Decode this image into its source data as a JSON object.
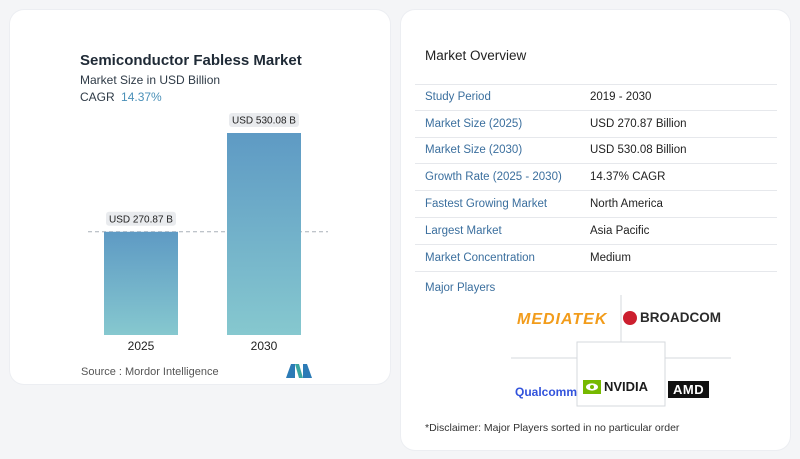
{
  "chart_card": {
    "title": "Semiconductor Fabless Market",
    "subtitle": "Market Size in USD Billion",
    "cagr_label": "CAGR",
    "cagr_value": "14.37%",
    "source": "Source :  Mordor Intelligence"
  },
  "chart_data": {
    "type": "bar",
    "title": "Semiconductor Fabless Market",
    "subtitle": "Market Size in USD Billion",
    "categories": [
      "2025",
      "2030"
    ],
    "values": [
      270.87,
      530.08
    ],
    "data_labels": [
      "USD 270.87 B",
      "USD 530.08 B"
    ],
    "unit": "USD Billion",
    "reference_line": "dashed line at 2025 value",
    "grid": false,
    "colors": {
      "bar_top": "#5e9ac4",
      "bar_bottom": "#86c8cf",
      "label_bg": "#e9ebee"
    }
  },
  "overview": {
    "title": "Market Overview",
    "rows": [
      {
        "label": "Study Period",
        "value": "2019 - 2030"
      },
      {
        "label": "Market Size (2025)",
        "value": "USD 270.87 Billion"
      },
      {
        "label": "Market Size (2030)",
        "value": "USD 530.08 Billion"
      },
      {
        "label": "Growth Rate (2025 - 2030)",
        "value": "14.37% CAGR"
      },
      {
        "label": "Fastest Growing Market",
        "value": "North America"
      },
      {
        "label": "Largest Market",
        "value": "Asia Pacific"
      },
      {
        "label": "Market Concentration",
        "value": "Medium"
      }
    ],
    "major_players_label": "Major Players",
    "players": [
      "MEDIATEK",
      "BROADCOM",
      "Qualcomm",
      "NVIDIA",
      "AMD"
    ],
    "disclaimer": "*Disclaimer: Major Players sorted in no particular order"
  },
  "colors": {
    "accent_blue": "#3b6f9e",
    "cagr_blue": "#4a90b8"
  }
}
